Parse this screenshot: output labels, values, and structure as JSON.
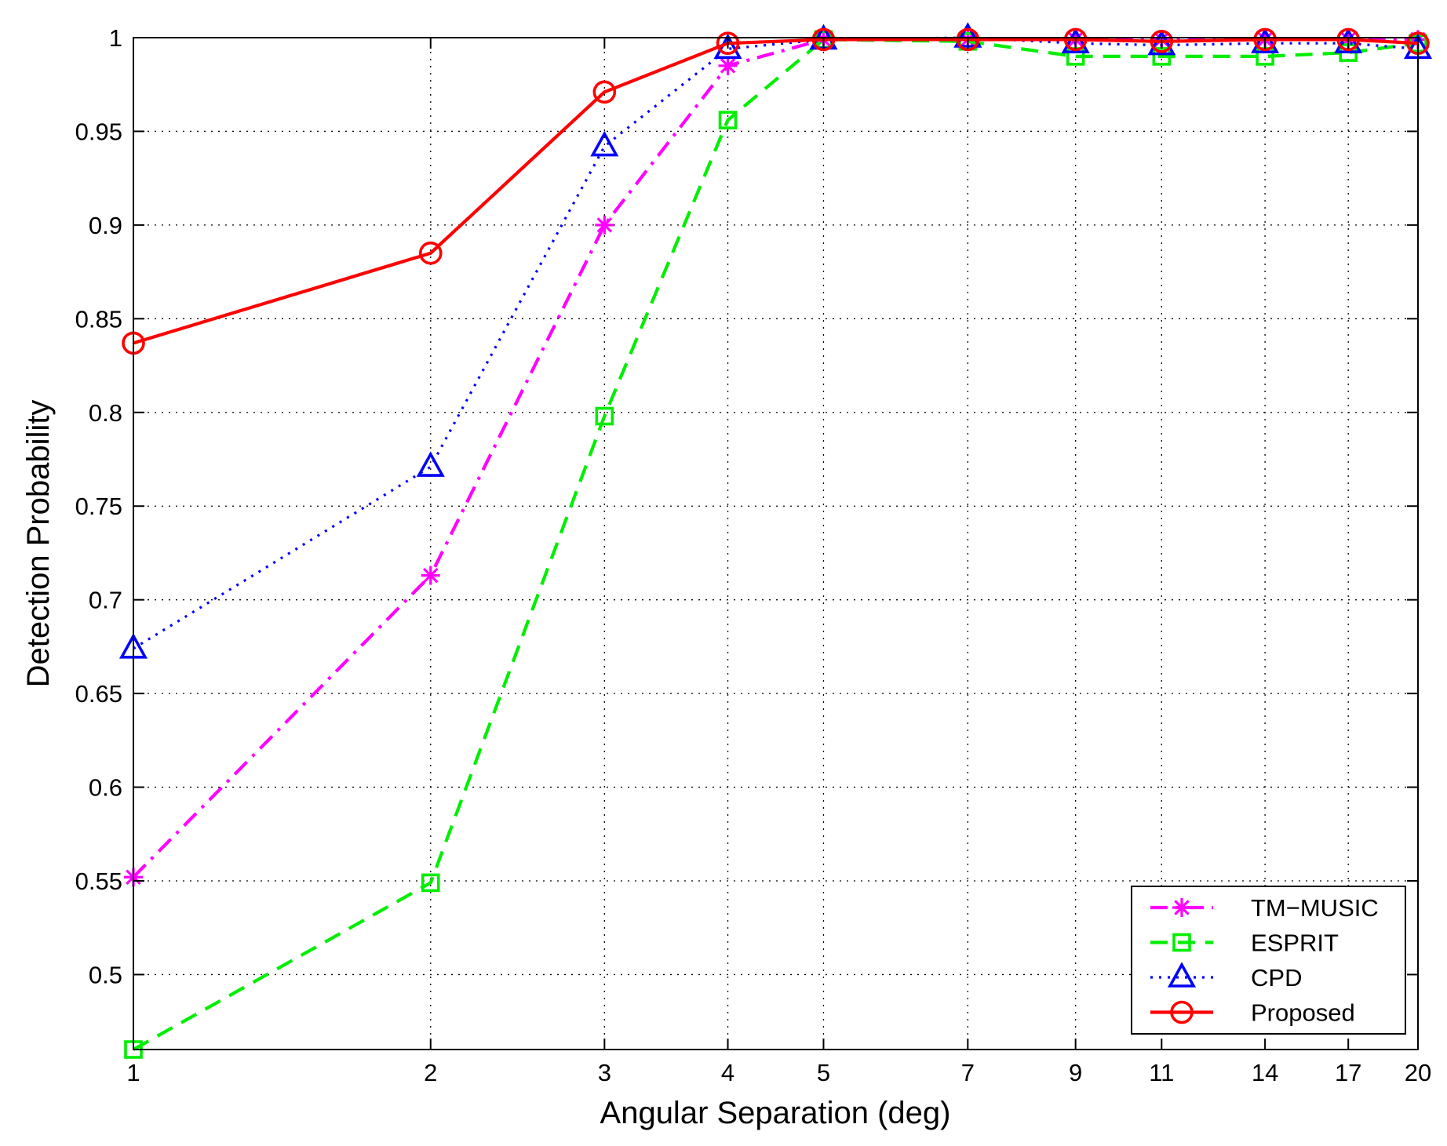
{
  "chart_data": {
    "type": "line",
    "title": "",
    "xlabel": "Angular Separation (deg)",
    "ylabel": "Detection Probability",
    "x": [
      1,
      2,
      3,
      4,
      5,
      7,
      9,
      11,
      14,
      17,
      20
    ],
    "x_scale": "log",
    "xlim": [
      1,
      20
    ],
    "ylim": [
      0.46,
      1.0
    ],
    "x_ticks": [
      1,
      2,
      3,
      4,
      5,
      7,
      9,
      11,
      14,
      17,
      20
    ],
    "x_tick_labels": [
      "1",
      "2",
      "3",
      "4",
      "5",
      "7",
      "9",
      "11",
      "14",
      "17",
      "20"
    ],
    "y_ticks": [
      0.5,
      0.55,
      0.6,
      0.65,
      0.7,
      0.75,
      0.8,
      0.85,
      0.9,
      0.95,
      1.0
    ],
    "y_tick_labels": [
      "0.5",
      "0.55",
      "0.6",
      "0.65",
      "0.7",
      "0.75",
      "0.8",
      "0.85",
      "0.9",
      "0.95",
      "1"
    ],
    "grid": true,
    "legend_position": "bottom-right",
    "series": [
      {
        "name": "TM−MUSIC",
        "color": "#ff00ff",
        "line_style": "dashdot",
        "marker": "asterisk",
        "values": [
          0.552,
          0.713,
          0.9,
          0.985,
          0.999,
          0.999,
          0.999,
          0.999,
          0.999,
          0.999,
          0.999
        ]
      },
      {
        "name": "ESPRIT",
        "color": "#00ee00",
        "line_style": "dashed",
        "marker": "square",
        "values": [
          0.46,
          0.549,
          0.798,
          0.956,
          0.999,
          0.998,
          0.99,
          0.99,
          0.99,
          0.992,
          0.997
        ]
      },
      {
        "name": "CPD",
        "color": "#0000ff",
        "line_style": "dotted",
        "marker": "triangle",
        "values": [
          0.674,
          0.771,
          0.942,
          0.994,
          0.999,
          1.0,
          0.997,
          0.996,
          0.997,
          0.997,
          0.994
        ]
      },
      {
        "name": "Proposed",
        "color": "#ff0000",
        "line_style": "solid",
        "marker": "circle",
        "values": [
          0.837,
          0.885,
          0.971,
          0.997,
          0.999,
          0.999,
          0.999,
          0.998,
          0.999,
          0.999,
          0.997
        ]
      }
    ]
  }
}
